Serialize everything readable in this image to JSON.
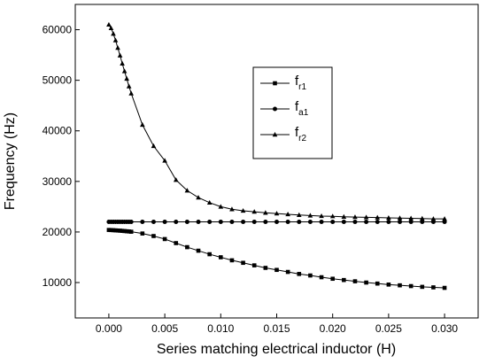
{
  "chart_data": {
    "type": "line",
    "title": "",
    "xlabel": "Series matching electrical inductor (H)",
    "ylabel": "Frequency (Hz)",
    "xlim": [
      -0.003,
      0.033
    ],
    "ylim": [
      3000,
      65000
    ],
    "x_ticks": [
      "0.000",
      "0.005",
      "0.010",
      "0.015",
      "0.020",
      "0.025",
      "0.030"
    ],
    "y_ticks": [
      "10000",
      "20000",
      "30000",
      "40000",
      "50000",
      "60000"
    ],
    "legend_position": "upper-center",
    "grid": false,
    "x": [
      0,
      0.0002,
      0.0004,
      0.0006,
      0.0008,
      0.001,
      0.0012,
      0.0014,
      0.0016,
      0.0018,
      0.002,
      0.003,
      0.004,
      0.005,
      0.006,
      0.007,
      0.008,
      0.009,
      0.01,
      0.011,
      0.012,
      0.013,
      0.014,
      0.015,
      0.016,
      0.017,
      0.018,
      0.019,
      0.02,
      0.021,
      0.022,
      0.023,
      0.024,
      0.025,
      0.026,
      0.027,
      0.028,
      0.029,
      0.03
    ],
    "series": [
      {
        "name": "f_r1",
        "main": "f",
        "sub": "r1",
        "marker": "square",
        "values": [
          20400,
          20380,
          20350,
          20320,
          20290,
          20260,
          20220,
          20180,
          20140,
          20100,
          20050,
          19700,
          19200,
          18600,
          17800,
          17000,
          16300,
          15600,
          15000,
          14400,
          13900,
          13400,
          12900,
          12500,
          12100,
          11700,
          11400,
          11050,
          10750,
          10500,
          10250,
          10000,
          9800,
          9600,
          9450,
          9300,
          9150,
          9050,
          8950
        ]
      },
      {
        "name": "f_a1",
        "main": "f",
        "sub": "a1",
        "marker": "circle",
        "values": [
          22000,
          22000,
          22000,
          22000,
          22000,
          22000,
          22000,
          22000,
          22000,
          22000,
          22000,
          22000,
          22000,
          22000,
          22000,
          22000,
          22000,
          22000,
          22000,
          22000,
          22000,
          22000,
          22000,
          22000,
          22000,
          22000,
          22000,
          22000,
          22000,
          22000,
          22000,
          22000,
          22000,
          22000,
          22000,
          22000,
          22000,
          22000,
          22000
        ]
      },
      {
        "name": "f_r2",
        "main": "f",
        "sub": "r2",
        "marker": "triangle",
        "values": [
          61000,
          60300,
          59200,
          57900,
          56400,
          54900,
          53300,
          51800,
          50300,
          48800,
          47400,
          41200,
          37000,
          34100,
          30300,
          28200,
          26800,
          25800,
          25000,
          24500,
          24200,
          24000,
          23800,
          23650,
          23500,
          23350,
          23250,
          23150,
          23100,
          23000,
          22950,
          22900,
          22850,
          22800,
          22750,
          22700,
          22650,
          22600,
          22600
        ]
      }
    ]
  }
}
